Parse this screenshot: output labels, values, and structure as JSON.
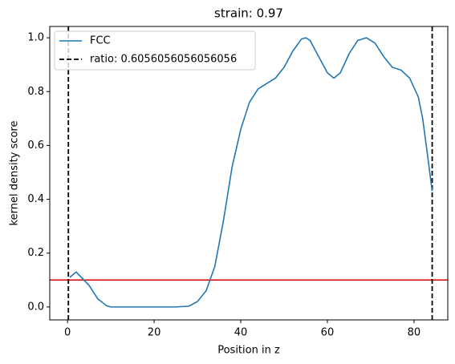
{
  "chart_data": {
    "type": "line",
    "title": "strain: 0.97",
    "xlabel": "Position in z",
    "ylabel": "kernel density score",
    "x": [
      0.5,
      2,
      5,
      7,
      9,
      10,
      15,
      20,
      25,
      28,
      30,
      32,
      34,
      36,
      38,
      40,
      42,
      44,
      46,
      48,
      50,
      52,
      54,
      55,
      56,
      58,
      60,
      61.5,
      63,
      65,
      67,
      69,
      71,
      73,
      75,
      77,
      79,
      81,
      82,
      83,
      84.2
    ],
    "series": [
      {
        "name": "FCC",
        "color": "#1f77b4",
        "values": [
          0.11,
          0.13,
          0.08,
          0.03,
          0.005,
          0,
          0,
          0,
          0,
          0.003,
          0.02,
          0.06,
          0.15,
          0.32,
          0.52,
          0.66,
          0.76,
          0.81,
          0.83,
          0.85,
          0.89,
          0.95,
          0.995,
          1.0,
          0.99,
          0.93,
          0.87,
          0.85,
          0.87,
          0.94,
          0.99,
          1.0,
          0.98,
          0.93,
          0.89,
          0.88,
          0.85,
          0.78,
          0.7,
          0.58,
          0.43
        ]
      }
    ],
    "vlines": {
      "name": "ratio: 0.6056056056056056",
      "color": "#000000",
      "x": [
        0.2,
        84.2
      ]
    },
    "hline": {
      "value": 0.1,
      "color": "#e00000"
    },
    "xlim": [
      -4.1,
      87.8
    ],
    "ylim": [
      -0.048,
      1.042
    ],
    "xticks": [
      0,
      20,
      40,
      60,
      80
    ],
    "yticks": [
      {
        "value": 0,
        "label": "0.0"
      },
      0.2,
      0.4,
      0.6,
      0.8,
      {
        "value": 1,
        "label": "1.0"
      }
    ],
    "legend": "upper-left"
  }
}
